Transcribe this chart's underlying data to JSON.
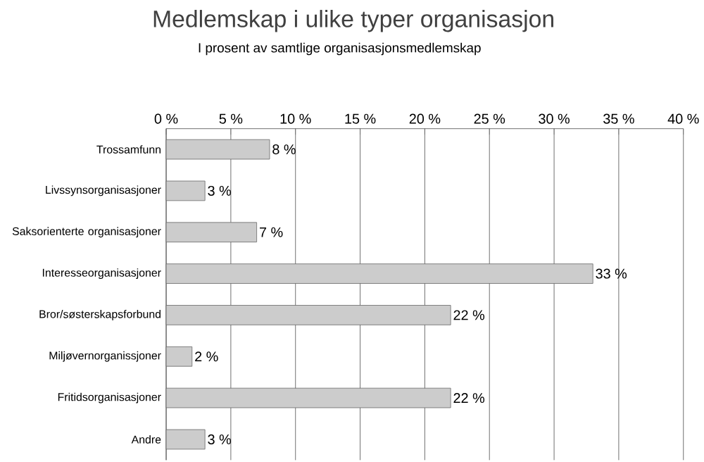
{
  "chart_data": {
    "type": "bar",
    "orientation": "horizontal",
    "title": "Medlemskap i ulike typer organisasjon",
    "subtitle": "I prosent av samtlige organisasjonsmedlemskap",
    "categories": [
      "Trossamfunn",
      "Livssynsorganisasjoner",
      "Saksorienterte organisasjoner",
      "Interesseorganisasjoner",
      "Bror/søsterskapsforbund",
      "Miljøvernorganissjoner",
      "Fritidsorganisasjoner",
      "Andre"
    ],
    "values": [
      8,
      3,
      7,
      33,
      22,
      2,
      22,
      3
    ],
    "value_labels": [
      "8 %",
      "3 %",
      "7 %",
      "33 %",
      "22 %",
      "2 %",
      "22 %",
      "3 %"
    ],
    "color": "#cccccc",
    "xlim": [
      0,
      40
    ],
    "xticks": [
      {
        "value": 0,
        "label": "0 %"
      },
      {
        "value": 5,
        "label": "5 %"
      },
      {
        "value": 10,
        "label": "10 %"
      },
      {
        "value": 15,
        "label": "15 %"
      },
      {
        "value": 20,
        "label": "20 %"
      },
      {
        "value": 25,
        "label": "25 %"
      },
      {
        "value": 30,
        "label": "30 %"
      },
      {
        "value": 35,
        "label": "35 %"
      },
      {
        "value": 40,
        "label": "40 %"
      }
    ],
    "grid": "x"
  }
}
